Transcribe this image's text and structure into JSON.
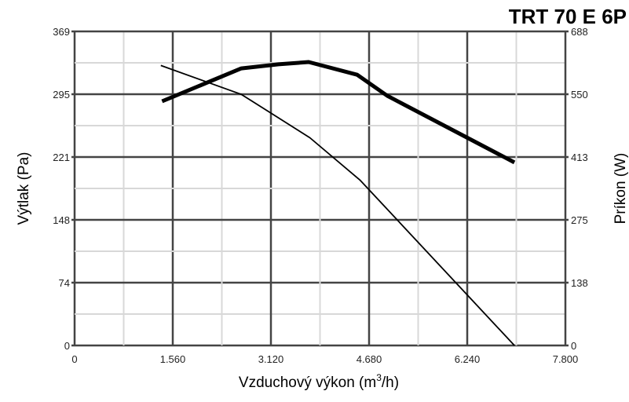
{
  "chart_data": {
    "type": "line",
    "title": "TRT 70 E 6P",
    "xlabel": "Vzduchový výkon (m",
    "xlabel_sup": "3",
    "xlabel_end": "/h)",
    "ylabel": "Výtlak (Pa)",
    "y2label": "Príkon (W)",
    "xlim": [
      0,
      7.8
    ],
    "ylim": [
      0,
      369
    ],
    "y2lim": [
      0,
      688
    ],
    "x_ticks": [
      "0",
      "1.560",
      "3.120",
      "4.680",
      "6.240",
      "7.800"
    ],
    "y_ticks": [
      "0",
      "74",
      "148",
      "221",
      "295",
      "369"
    ],
    "y2_ticks": [
      "0",
      "138",
      "275",
      "413",
      "550",
      "688"
    ],
    "grid": true,
    "series": [
      {
        "axis": "left",
        "line": "thin",
        "x": [
          1.37,
          2.65,
          3.1,
          3.74,
          4.54,
          6.99
        ],
        "y": [
          329,
          295,
          274,
          244,
          194,
          0
        ]
      },
      {
        "axis": "right",
        "line": "thick",
        "x": [
          1.39,
          2.65,
          3.24,
          3.72,
          4.49,
          4.97,
          6.99
        ],
        "y": [
          535,
          607,
          616,
          621,
          593,
          547,
          401
        ]
      }
    ]
  }
}
